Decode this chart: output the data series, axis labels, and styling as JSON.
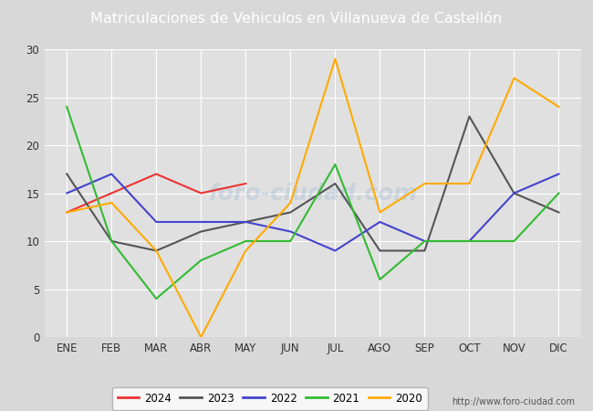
{
  "title": "Matriculaciones de Vehiculos en Villanueva de Castellón",
  "header_bg": "#5b8dd9",
  "months": [
    "ENE",
    "FEB",
    "MAR",
    "ABR",
    "MAY",
    "JUN",
    "JUL",
    "AGO",
    "SEP",
    "OCT",
    "NOV",
    "DIC"
  ],
  "series": {
    "2024": {
      "data": [
        13,
        null,
        17,
        15,
        16,
        null,
        null,
        null,
        null,
        null,
        null,
        null
      ],
      "color": "#ee3333",
      "label": "2024"
    },
    "2023": {
      "data": [
        17,
        10,
        9,
        11,
        12,
        13,
        16,
        9,
        9,
        23,
        15,
        13
      ],
      "color": "#555555",
      "label": "2023"
    },
    "2022": {
      "data": [
        15,
        17,
        12,
        12,
        12,
        11,
        9,
        12,
        10,
        10,
        15,
        17
      ],
      "color": "#4444cc",
      "label": "2022"
    },
    "2021": {
      "data": [
        24,
        10,
        4,
        8,
        10,
        10,
        18,
        6,
        10,
        10,
        10,
        15
      ],
      "color": "#33bb33",
      "label": "2021"
    },
    "2020": {
      "data": [
        13,
        14,
        9,
        0,
        9,
        14,
        29,
        13,
        16,
        16,
        27,
        24
      ],
      "color": "#ffaa00",
      "label": "2020"
    }
  },
  "ylim": [
    0,
    30
  ],
  "yticks": [
    0,
    5,
    10,
    15,
    20,
    25,
    30
  ],
  "fig_bg": "#d8d8d8",
  "plot_bg": "#e0e0e0",
  "grid_color": "#ffffff",
  "tick_color": "#333333",
  "footer_text": "http://www.foro-ciudad.com",
  "legend_order": [
    "2024",
    "2023",
    "2022",
    "2021",
    "2020"
  ],
  "watermark": "foro-ciudad.com",
  "linewidth": 1.5
}
